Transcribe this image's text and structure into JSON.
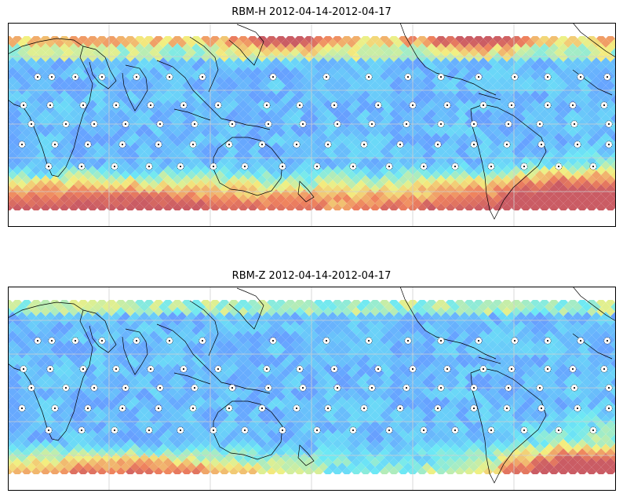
{
  "panels": [
    {
      "id": "top",
      "title": "RBM-H 2012-04-14-2012-04-17",
      "field": "rbm-h"
    },
    {
      "id": "bottom",
      "title": "RBM-Z 2012-04-14-2012-04-17",
      "field": "rbm-z"
    }
  ],
  "colors": {
    "low": "#6a6af5",
    "mid_low": "#5fa0ff",
    "mid": "#66e8f5",
    "mid_high": "#f3f07a",
    "high": "#ef7d56",
    "max": "#c8545c",
    "coast": "#000000",
    "grid": "#cfcfcf",
    "frame": "#000000"
  },
  "marker_icon": "white-spiky-dot-icon"
}
